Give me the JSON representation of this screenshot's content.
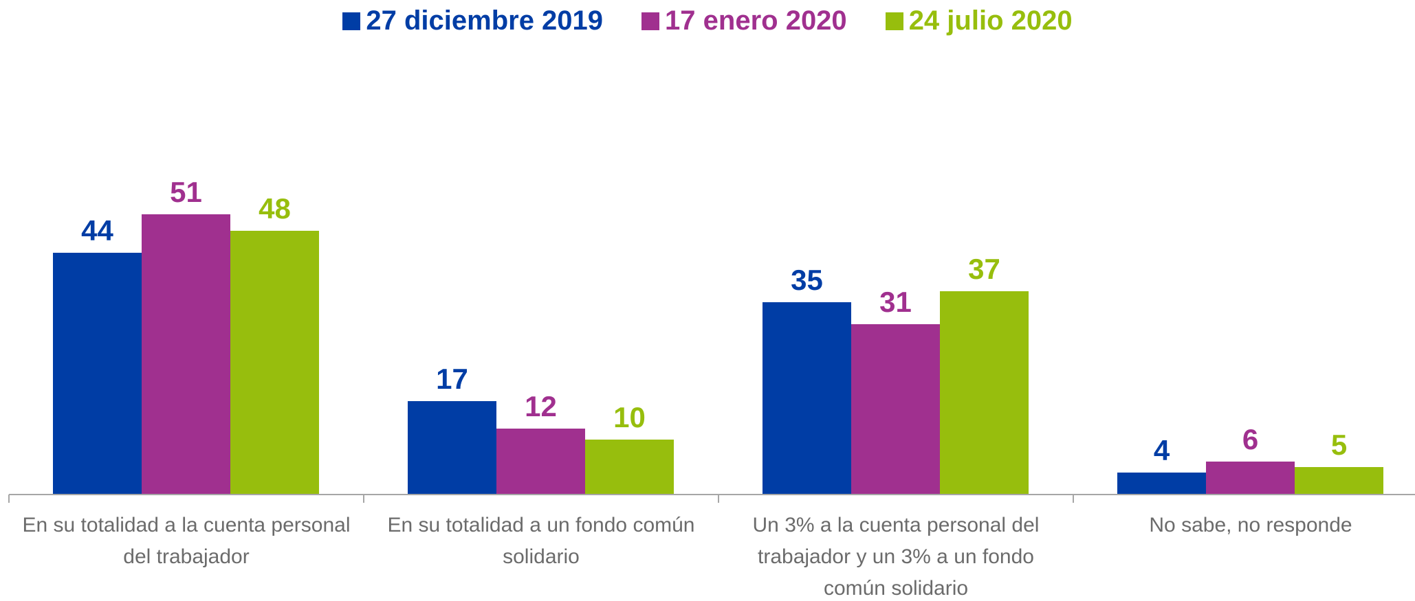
{
  "chart_data": {
    "type": "bar",
    "categories": [
      "En su totalidad a la cuenta personal del trabajador",
      "En su totalidad a un fondo común solidario",
      "Un 3% a la cuenta personal del trabajador y un 3% a un fondo común solidario",
      "No sabe, no responde"
    ],
    "series": [
      {
        "name": "27 diciembre 2019",
        "color": "#003DA5",
        "values": [
          44,
          17,
          35,
          4
        ]
      },
      {
        "name": "17 enero 2020",
        "color": "#A0308F",
        "values": [
          51,
          12,
          31,
          6
        ]
      },
      {
        "name": "24 julio 2020",
        "color": "#97BE0D",
        "values": [
          48,
          10,
          37,
          5
        ]
      }
    ],
    "ylim": [
      0,
      80
    ],
    "legend": "top"
  }
}
